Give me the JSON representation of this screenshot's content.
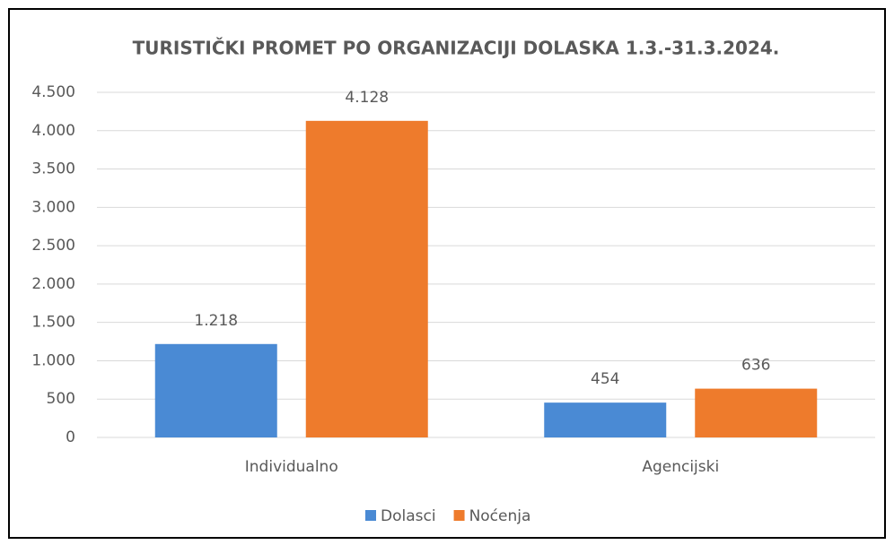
{
  "chart_data": {
    "type": "bar",
    "title": "TURISTIČKI PROMET PO ORGANIZACIJI DOLASKA 1.3.-31.3.2024.",
    "categories": [
      "Individualno",
      "Agencijski"
    ],
    "series": [
      {
        "name": "Dolasci",
        "color": "#4a8ad4",
        "values": [
          1218,
          454
        ],
        "value_labels": [
          "1.218",
          "454"
        ]
      },
      {
        "name": "Noćenja",
        "color": "#ee7b2c",
        "values": [
          4128,
          636
        ],
        "value_labels": [
          "4.128",
          "636"
        ]
      }
    ],
    "ylim": [
      0,
      4500
    ],
    "yticks": [
      0,
      500,
      {
        "value": 1000,
        "label": "1.000"
      },
      {
        "value": 1500,
        "label": "1.500"
      },
      {
        "value": 2000,
        "label": "2.000"
      },
      {
        "value": 2500,
        "label": "2.500"
      },
      {
        "value": 3000,
        "label": "3.000"
      },
      {
        "value": 3500,
        "label": "3.500"
      },
      {
        "value": 4000,
        "label": "4.000"
      },
      {
        "value": 4500,
        "label": "4.500"
      }
    ],
    "grid": true,
    "legend": "bottom"
  }
}
